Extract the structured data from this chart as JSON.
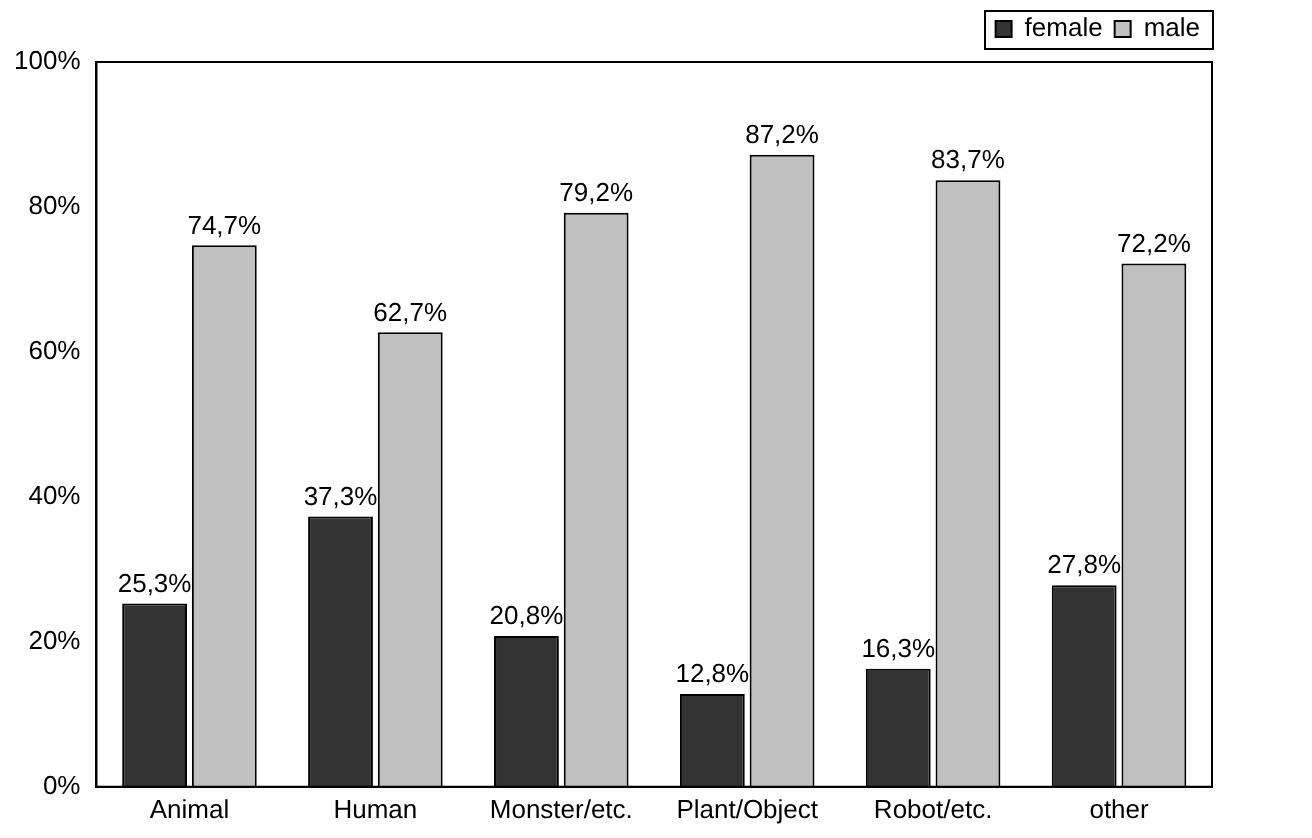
{
  "chart_data": {
    "type": "bar",
    "categories": [
      "Animal",
      "Human",
      "Monster/etc.",
      "Plant/Object",
      "Robot/etc.",
      "other"
    ],
    "series": [
      {
        "name": "female",
        "color": "#333333",
        "values": [
          25.3,
          37.3,
          20.8,
          12.8,
          16.3,
          27.8
        ],
        "value_labels": [
          "25,3%",
          "37,3%",
          "20,8%",
          "12,8%",
          "16,3%",
          "27,8%"
        ]
      },
      {
        "name": "male",
        "color": "#c0c0c0",
        "values": [
          74.7,
          62.7,
          79.2,
          87.2,
          83.7,
          72.2
        ],
        "value_labels": [
          "74,7%",
          "62,7%",
          "79,2%",
          "87,2%",
          "83,7%",
          "72,2%"
        ]
      }
    ],
    "ylim": [
      0,
      100
    ],
    "yticks": [
      {
        "value": 0,
        "label": "0%"
      },
      {
        "value": 20,
        "label": "20%"
      },
      {
        "value": 40,
        "label": "40%"
      },
      {
        "value": 60,
        "label": "60%"
      },
      {
        "value": 80,
        "label": "80%"
      },
      {
        "value": 100,
        "label": "100%"
      }
    ],
    "grid": false,
    "legend": "top right"
  }
}
